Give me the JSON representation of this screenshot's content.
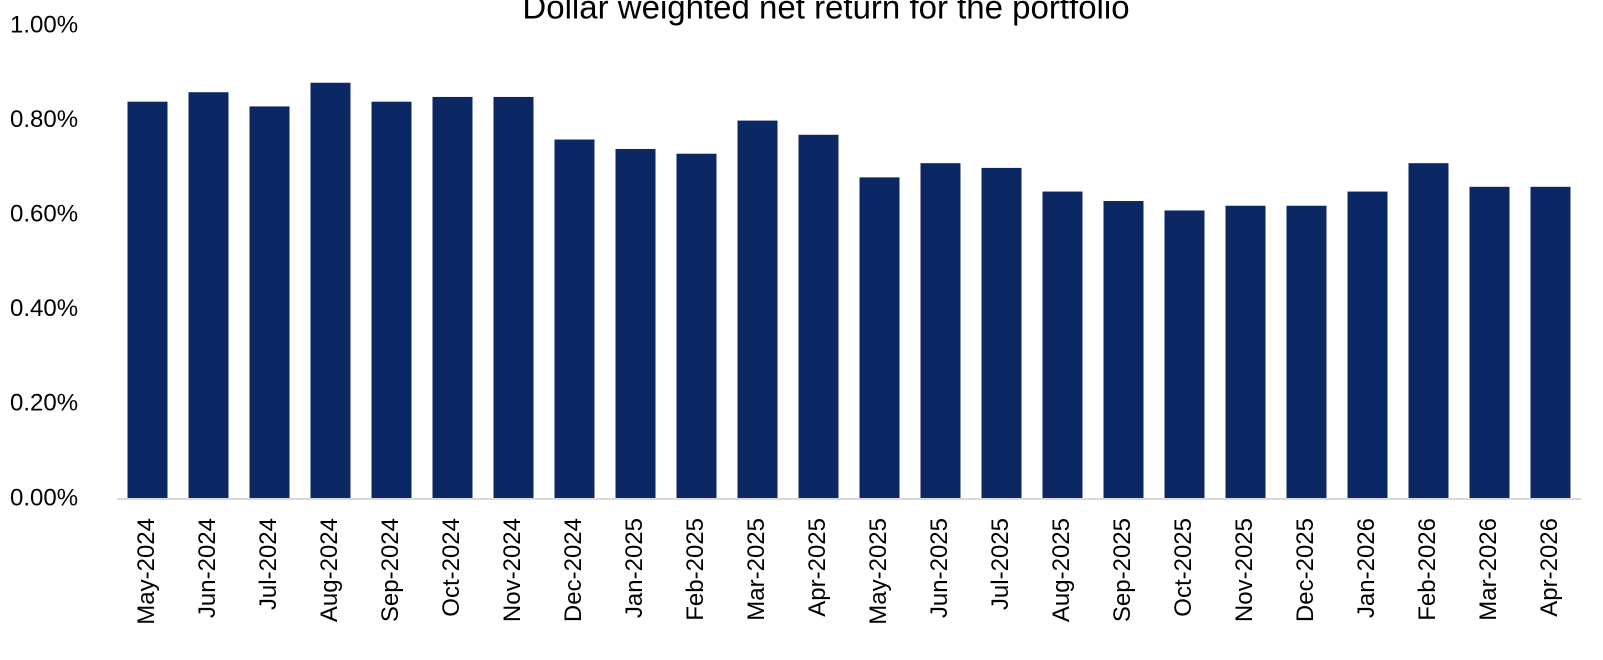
{
  "chart_data": {
    "type": "bar",
    "title": "Dollar weighted net return for the portfolio",
    "categories": [
      "May-2024",
      "Jun-2024",
      "Jul-2024",
      "Aug-2024",
      "Sep-2024",
      "Oct-2024",
      "Nov-2024",
      "Dec-2024",
      "Jan-2025",
      "Feb-2025",
      "Mar-2025",
      "Apr-2025",
      "May-2025",
      "Jun-2025",
      "Jul-2025",
      "Aug-2025",
      "Sep-2025",
      "Oct-2025",
      "Nov-2025",
      "Dec-2025",
      "Jan-2026",
      "Feb-2026",
      "Mar-2026",
      "Apr-2026"
    ],
    "values": [
      0.84,
      0.86,
      0.83,
      0.88,
      0.84,
      0.85,
      0.85,
      0.76,
      0.74,
      0.73,
      0.8,
      0.77,
      0.68,
      0.71,
      0.7,
      0.65,
      0.63,
      0.61,
      0.62,
      0.62,
      0.65,
      0.71,
      0.66,
      0.66
    ],
    "color": "#0c2864",
    "ylim": [
      0,
      1
    ],
    "yticks": [
      {
        "value": 0,
        "label": "0.00%"
      },
      {
        "value": 0.2,
        "label": "0.20%"
      },
      {
        "value": 0.4,
        "label": "0.40%"
      },
      {
        "value": 0.6,
        "label": "0.60%"
      },
      {
        "value": 0.8,
        "label": "0.80%"
      },
      {
        "value": 1,
        "label": "1.00%"
      }
    ],
    "grid": false
  }
}
